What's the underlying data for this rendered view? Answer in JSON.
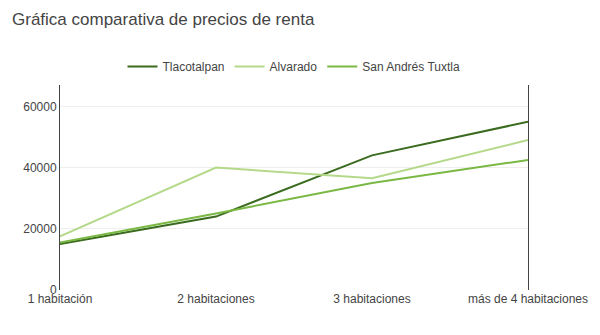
{
  "chart_data": {
    "type": "line",
    "title": "Gráfica comparativa de precios de renta",
    "categories": [
      "1 habitación",
      "2 habitaciones",
      "3 habitaciones",
      "más de 4 habitaciones"
    ],
    "series": [
      {
        "name": "Tlacotalpan",
        "color": "#3a6b1f",
        "values": [
          15000,
          24000,
          44000,
          55000
        ]
      },
      {
        "name": "Alvarado",
        "color": "#b5d98a",
        "values": [
          17500,
          40000,
          36500,
          49000
        ]
      },
      {
        "name": "San Andrés Tuxtla",
        "color": "#7ab844",
        "values": [
          15500,
          25000,
          35000,
          42500
        ]
      }
    ],
    "ylim": [
      0,
      67000
    ],
    "yticks": [
      0,
      20000,
      40000,
      60000
    ],
    "grid": true,
    "legend": "top"
  }
}
